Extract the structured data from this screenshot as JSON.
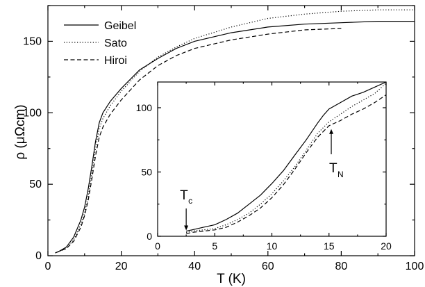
{
  "chart_data": [
    {
      "type": "line",
      "xlabel": "T (K)",
      "ylabel": "ρ  (μΩcm)",
      "xlim": [
        0,
        100
      ],
      "ylim": [
        0,
        175
      ],
      "xticks": [
        "0",
        "20",
        "40",
        "60",
        "80",
        "100"
      ],
      "yticks": [
        "0",
        "50",
        "100",
        "150"
      ],
      "legend": {
        "placement": "top-left",
        "entries": [
          "Geibel",
          "Sato",
          "Hiroi"
        ]
      },
      "series": [
        {
          "name": "Geibel",
          "style": "solid",
          "x": [
            2,
            3,
            5,
            7,
            9,
            10,
            11,
            12,
            13,
            14,
            15,
            17,
            20,
            25,
            30,
            35,
            40,
            50,
            60,
            70,
            80,
            90,
            100
          ],
          "y": [
            2,
            3,
            6,
            13,
            25,
            34,
            47,
            63,
            80,
            93,
            100,
            108,
            117,
            130,
            138,
            145,
            150,
            156,
            160,
            162,
            163,
            164,
            164
          ]
        },
        {
          "name": "Sato",
          "style": "dotted",
          "x": [
            2,
            3,
            5,
            7,
            9,
            10,
            11,
            12,
            13,
            14,
            15,
            17,
            20,
            25,
            30,
            35,
            40,
            50,
            60,
            70,
            80,
            90,
            100
          ],
          "y": [
            2,
            3,
            5,
            11,
            22,
            30,
            42,
            58,
            75,
            89,
            96,
            105,
            115,
            129,
            139,
            146,
            152,
            160,
            166,
            169,
            171,
            172,
            172
          ]
        },
        {
          "name": "Hiroi",
          "style": "dashed",
          "x": [
            2,
            3,
            5,
            7,
            9,
            10,
            11,
            12,
            13,
            14,
            15,
            17,
            20,
            25,
            30,
            35,
            40,
            50,
            60,
            70,
            80
          ],
          "y": [
            2,
            3,
            5,
            10,
            20,
            28,
            39,
            54,
            70,
            83,
            90,
            99,
            109,
            123,
            133,
            140,
            145,
            151,
            155,
            158,
            159
          ]
        }
      ]
    },
    {
      "type": "line",
      "xlim": [
        0,
        20
      ],
      "ylim": [
        0,
        120
      ],
      "xticks": [
        "0",
        "5",
        "10",
        "15",
        "20"
      ],
      "yticks": [
        "0",
        "50",
        "100"
      ],
      "annotations": [
        {
          "text": "T",
          "sub": "c",
          "x": 2.5,
          "y": 3
        },
        {
          "text": "T",
          "sub": "N",
          "x": 15.2,
          "y": 85
        }
      ],
      "series": [
        {
          "name": "Geibel",
          "style": "solid",
          "x": [
            2.5,
            3,
            4,
            5,
            6,
            7,
            8,
            9,
            10,
            11,
            12,
            13,
            14,
            14.5,
            15,
            16,
            17,
            18,
            19,
            20
          ],
          "y": [
            4,
            5,
            7,
            9,
            13,
            18,
            25,
            32,
            41,
            51,
            63,
            75,
            88,
            94,
            99,
            104,
            109,
            112,
            116,
            120
          ]
        },
        {
          "name": "Sato",
          "style": "dotted",
          "x": [
            2.5,
            3,
            4,
            5,
            6,
            7,
            8,
            9,
            10,
            11,
            12,
            13,
            14,
            15,
            16,
            17,
            18,
            19,
            20
          ],
          "y": [
            3,
            4,
            5,
            6,
            9,
            13,
            18,
            25,
            33,
            43,
            54,
            67,
            80,
            89,
            95,
            101,
            106,
            111,
            119
          ]
        },
        {
          "name": "Hiroi",
          "style": "dashed",
          "x": [
            2.5,
            3,
            4,
            5,
            6,
            7,
            8,
            9,
            10,
            11,
            12,
            13,
            14,
            15,
            16,
            17,
            18,
            19,
            20
          ],
          "y": [
            2,
            3,
            4,
            5,
            7,
            11,
            16,
            22,
            30,
            40,
            52,
            65,
            77,
            86,
            90,
            95,
            99,
            104,
            110
          ]
        }
      ]
    }
  ]
}
